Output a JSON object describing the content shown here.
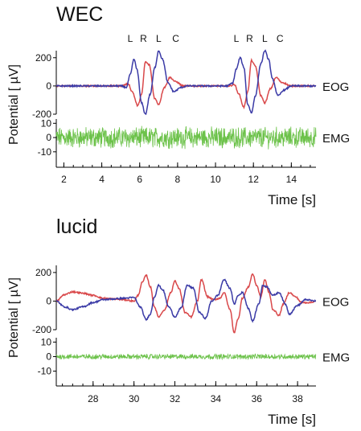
{
  "colors": {
    "left_eog": "#d9484a",
    "right_eog": "#3a3aa6",
    "emg": "#6cc24a"
  },
  "chart_data": [
    {
      "type": "line",
      "title": "WEC",
      "ylabel": "Potential [ µV]",
      "xlabel": "Time [s]",
      "xlim": [
        1.6,
        15.3
      ],
      "x_ticks": [
        2,
        4,
        6,
        8,
        10,
        12,
        14
      ],
      "eog": {
        "label": "EOG",
        "ylim": [
          -200,
          250
        ],
        "y_ticks": [
          200,
          0,
          -200
        ]
      },
      "emg": {
        "label": "EMG",
        "ylim": [
          -18,
          13
        ],
        "y_ticks": [
          10,
          0,
          -10
        ],
        "amplitude": 6
      },
      "movement_markers": [
        {
          "label": "L",
          "x": 5.5
        },
        {
          "label": "R",
          "x": 6.2
        },
        {
          "label": "L",
          "x": 7.0
        },
        {
          "label": "C",
          "x": 7.9
        },
        {
          "label": "L",
          "x": 11.1
        },
        {
          "label": "R",
          "x": 11.8
        },
        {
          "label": "L",
          "x": 12.6
        },
        {
          "label": "C",
          "x": 13.4
        }
      ],
      "series": [
        {
          "channel": "eog",
          "color_key": "left_eog",
          "points": [
            [
              1.6,
              0
            ],
            [
              5.0,
              0
            ],
            [
              5.4,
              15
            ],
            [
              5.6,
              -40
            ],
            [
              5.9,
              -140
            ],
            [
              6.1,
              -60
            ],
            [
              6.3,
              170
            ],
            [
              6.5,
              150
            ],
            [
              6.8,
              -90
            ],
            [
              7.0,
              -130
            ],
            [
              7.3,
              -10
            ],
            [
              7.6,
              60
            ],
            [
              7.9,
              30
            ],
            [
              8.3,
              0
            ],
            [
              10.7,
              0
            ],
            [
              11.0,
              10
            ],
            [
              11.2,
              -50
            ],
            [
              11.5,
              -150
            ],
            [
              11.7,
              -40
            ],
            [
              11.9,
              180
            ],
            [
              12.1,
              140
            ],
            [
              12.4,
              -70
            ],
            [
              12.6,
              -120
            ],
            [
              12.9,
              -20
            ],
            [
              13.2,
              60
            ],
            [
              13.5,
              25
            ],
            [
              14.0,
              0
            ],
            [
              15.3,
              0
            ]
          ]
        },
        {
          "channel": "eog",
          "color_key": "right_eog",
          "points": [
            [
              1.6,
              0
            ],
            [
              5.0,
              0
            ],
            [
              5.3,
              -10
            ],
            [
              5.5,
              80
            ],
            [
              5.7,
              190
            ],
            [
              5.85,
              120
            ],
            [
              6.1,
              -120
            ],
            [
              6.3,
              -200
            ],
            [
              6.55,
              -60
            ],
            [
              6.8,
              130
            ],
            [
              7.0,
              250
            ],
            [
              7.2,
              190
            ],
            [
              7.5,
              20
            ],
            [
              7.8,
              -40
            ],
            [
              8.2,
              -10
            ],
            [
              8.5,
              0
            ],
            [
              10.6,
              0
            ],
            [
              10.9,
              20
            ],
            [
              11.1,
              120
            ],
            [
              11.3,
              200
            ],
            [
              11.5,
              130
            ],
            [
              11.7,
              -130
            ],
            [
              11.9,
              -190
            ],
            [
              12.1,
              -70
            ],
            [
              12.4,
              160
            ],
            [
              12.6,
              250
            ],
            [
              12.8,
              190
            ],
            [
              13.0,
              50
            ],
            [
              13.3,
              -70
            ],
            [
              13.6,
              -30
            ],
            [
              14.0,
              0
            ],
            [
              15.3,
              0
            ]
          ]
        }
      ]
    },
    {
      "type": "line",
      "title": "lucid",
      "ylabel": "Potential [ µV]",
      "xlabel": "Time [s]",
      "xlim": [
        26.2,
        38.9
      ],
      "x_ticks": [
        28,
        30,
        32,
        34,
        36,
        38
      ],
      "eog": {
        "label": "EOG",
        "ylim": [
          -200,
          250
        ],
        "y_ticks": [
          200,
          0,
          -200
        ]
      },
      "emg": {
        "label": "EMG",
        "ylim": [
          -18,
          13
        ],
        "y_ticks": [
          10,
          0,
          -10
        ],
        "amplitude": 1.5
      },
      "movement_markers": [],
      "series": [
        {
          "channel": "eog",
          "color_key": "left_eog",
          "points": [
            [
              26.2,
              0
            ],
            [
              26.6,
              45
            ],
            [
              27.0,
              65
            ],
            [
              27.5,
              55
            ],
            [
              28.0,
              40
            ],
            [
              28.5,
              20
            ],
            [
              29.0,
              15
            ],
            [
              29.5,
              10
            ],
            [
              30.0,
              0
            ],
            [
              30.2,
              40
            ],
            [
              30.4,
              130
            ],
            [
              30.6,
              180
            ],
            [
              30.8,
              100
            ],
            [
              31.0,
              -40
            ],
            [
              31.2,
              -110
            ],
            [
              31.5,
              -60
            ],
            [
              31.8,
              60
            ],
            [
              32.0,
              140
            ],
            [
              32.2,
              90
            ],
            [
              32.5,
              -80
            ],
            [
              32.8,
              -110
            ],
            [
              33.1,
              0
            ],
            [
              33.3,
              150
            ],
            [
              33.6,
              30
            ],
            [
              33.9,
              10
            ],
            [
              34.2,
              20
            ],
            [
              34.4,
              60
            ],
            [
              34.7,
              -60
            ],
            [
              34.9,
              -220
            ],
            [
              35.1,
              -120
            ],
            [
              35.3,
              20
            ],
            [
              35.6,
              100
            ],
            [
              35.8,
              190
            ],
            [
              36.0,
              110
            ],
            [
              36.2,
              30
            ],
            [
              36.4,
              150
            ],
            [
              36.6,
              60
            ],
            [
              36.8,
              -60
            ],
            [
              37.1,
              -100
            ],
            [
              37.3,
              -20
            ],
            [
              37.6,
              60
            ],
            [
              37.9,
              30
            ],
            [
              38.2,
              -10
            ],
            [
              38.6,
              -10
            ],
            [
              38.9,
              0
            ]
          ]
        },
        {
          "channel": "eog",
          "color_key": "right_eog",
          "points": [
            [
              26.2,
              0
            ],
            [
              26.6,
              -40
            ],
            [
              27.0,
              -60
            ],
            [
              27.5,
              -40
            ],
            [
              28.0,
              -10
            ],
            [
              28.5,
              10
            ],
            [
              29.0,
              15
            ],
            [
              29.5,
              20
            ],
            [
              30.0,
              25
            ],
            [
              30.3,
              -40
            ],
            [
              30.6,
              -130
            ],
            [
              30.8,
              -90
            ],
            [
              31.0,
              30
            ],
            [
              31.2,
              110
            ],
            [
              31.4,
              80
            ],
            [
              31.7,
              -40
            ],
            [
              32.0,
              -110
            ],
            [
              32.3,
              -50
            ],
            [
              32.6,
              110
            ],
            [
              32.9,
              90
            ],
            [
              33.2,
              -80
            ],
            [
              33.5,
              -120
            ],
            [
              33.8,
              0
            ],
            [
              34.1,
              40
            ],
            [
              34.4,
              150
            ],
            [
              34.7,
              90
            ],
            [
              34.9,
              -20
            ],
            [
              35.1,
              40
            ],
            [
              35.3,
              60
            ],
            [
              35.6,
              -50
            ],
            [
              35.8,
              -140
            ],
            [
              36.1,
              -20
            ],
            [
              36.3,
              110
            ],
            [
              36.5,
              100
            ],
            [
              36.8,
              40
            ],
            [
              37.1,
              60
            ],
            [
              37.4,
              -20
            ],
            [
              37.6,
              -90
            ],
            [
              38.0,
              -30
            ],
            [
              38.4,
              10
            ],
            [
              38.9,
              0
            ]
          ]
        }
      ]
    }
  ]
}
